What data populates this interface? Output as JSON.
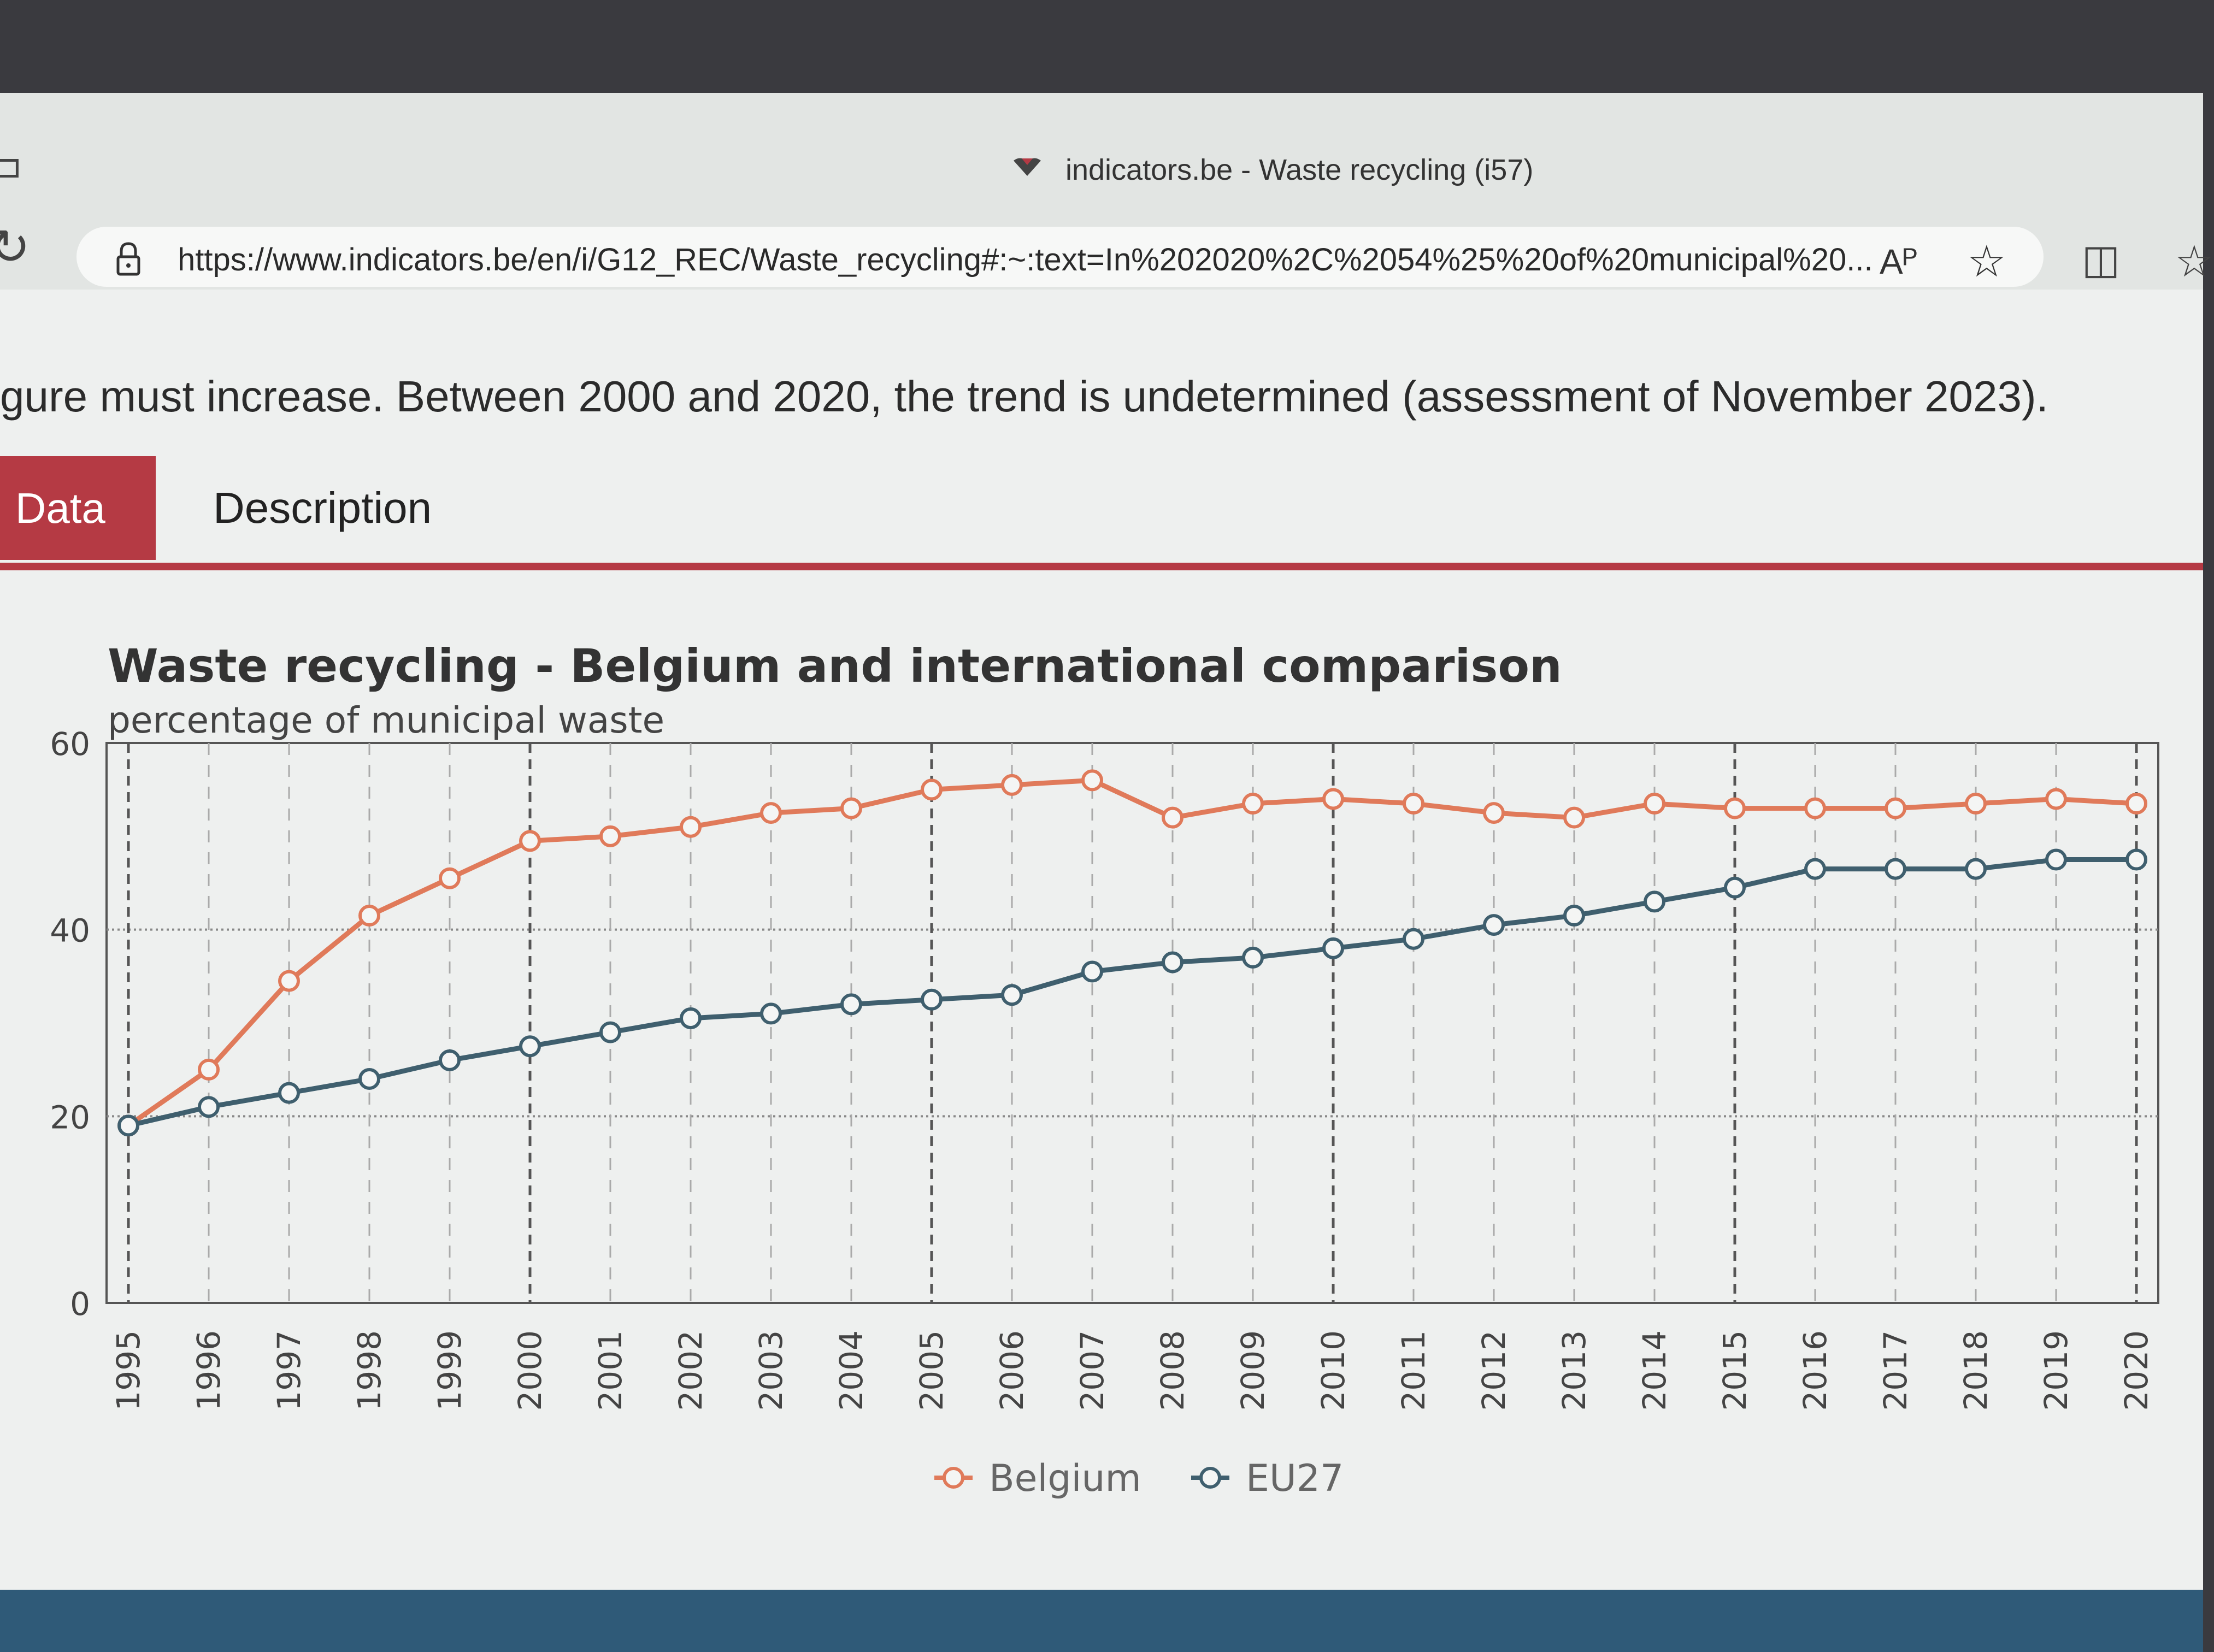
{
  "browser": {
    "tab_title": "indicators.be - Waste recycling (i57)",
    "url": "https://www.indicators.be/en/i/G12_REC/Waste_recycling#:~:text=In%202020%2C%2054%25%20of%20municipal%20...",
    "read_aloud_label": "Aᴾ"
  },
  "page": {
    "cut_off_text": "gure must increase. Between 2000 and 2020, the trend is undetermined (assessment of November 2023).",
    "tabs": [
      {
        "label": "Data",
        "active": true
      },
      {
        "label": "Description",
        "active": false
      }
    ]
  },
  "colors": {
    "belgium": "#e07a5a",
    "eu27": "#3f5f6e",
    "accent": "#b53a44"
  },
  "chart_data": {
    "type": "line",
    "title": "Waste recycling - Belgium and international comparison",
    "subtitle": "percentage of municipal waste",
    "xlabel": "",
    "ylabel": "",
    "ylim": [
      0,
      60
    ],
    "yticks": [
      0,
      20,
      40,
      60
    ],
    "categories": [
      "1995",
      "1996",
      "1997",
      "1998",
      "1999",
      "2000",
      "2001",
      "2002",
      "2003",
      "2004",
      "2005",
      "2006",
      "2007",
      "2008",
      "2009",
      "2010",
      "2011",
      "2012",
      "2013",
      "2014",
      "2015",
      "2016",
      "2017",
      "2018",
      "2019",
      "2020"
    ],
    "series": [
      {
        "name": "Belgium",
        "values": [
          19,
          25,
          34.5,
          41.5,
          45.5,
          49.5,
          50,
          51,
          52.5,
          53,
          55,
          55.5,
          56,
          52,
          53.5,
          54,
          53.5,
          52.5,
          52,
          53.5,
          53,
          53,
          53,
          53.5,
          54,
          53.5
        ]
      },
      {
        "name": "EU27",
        "values": [
          19,
          21,
          22.5,
          24,
          26,
          27.5,
          29,
          30.5,
          31,
          32,
          32.5,
          33,
          35.5,
          36.5,
          37,
          38,
          39,
          40.5,
          41.5,
          43,
          44.5,
          46.5,
          46.5,
          46.5,
          47.5,
          47.5
        ]
      }
    ],
    "grid": "dotted horizontal, dashed vertical every 5 years",
    "legend_position": "bottom-center"
  }
}
